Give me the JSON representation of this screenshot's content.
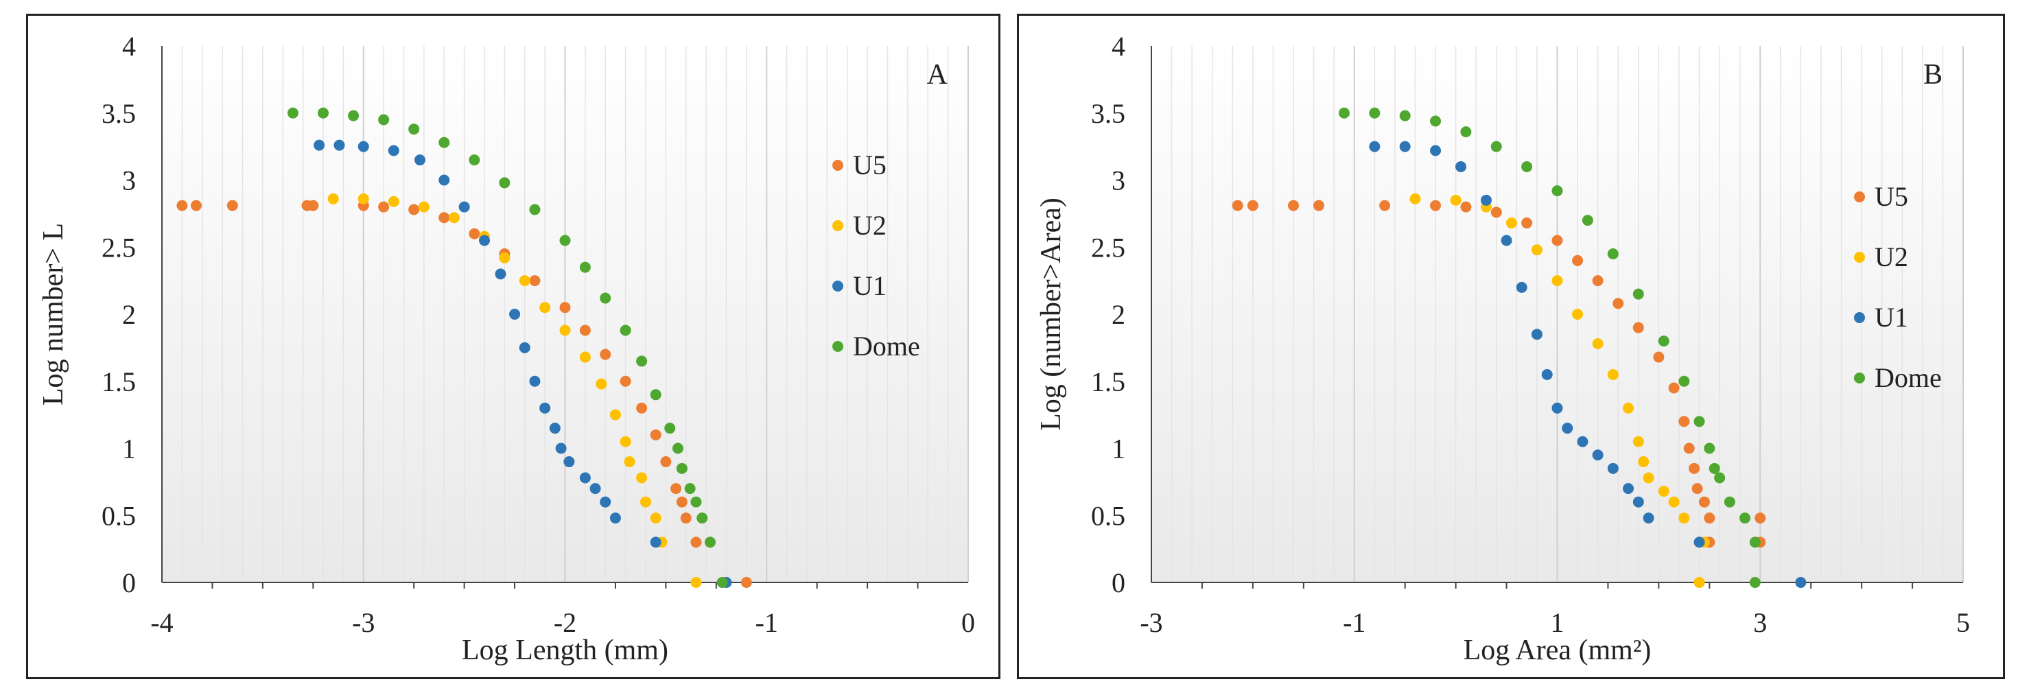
{
  "chart_data": [
    {
      "type": "scatter",
      "panel_letter": "A",
      "xlabel": "Log Length (mm)",
      "ylabel": "Log number> L",
      "xlim": [
        -4,
        0
      ],
      "ylim": [
        0,
        4
      ],
      "x_ticks": [
        -4,
        -3,
        -2,
        -1,
        0
      ],
      "y_ticks": [
        0,
        0.5,
        1,
        1.5,
        2,
        2.5,
        3,
        3.5,
        4
      ],
      "x_tick_labels": [
        "-4",
        "-3",
        "-2",
        "-1",
        "0"
      ],
      "y_tick_labels": [
        "0",
        "0.5",
        "1",
        "1.5",
        "2",
        "2.5",
        "3",
        "3.5",
        "4"
      ],
      "legend": [
        "U5",
        "U2",
        "U1",
        "Dome"
      ],
      "series": [
        {
          "name": "U5",
          "color": "#ED7D31",
          "points": [
            [
              -3.9,
              2.81
            ],
            [
              -3.83,
              2.81
            ],
            [
              -3.65,
              2.81
            ],
            [
              -3.28,
              2.81
            ],
            [
              -3.25,
              2.81
            ],
            [
              -3.0,
              2.81
            ],
            [
              -2.9,
              2.8
            ],
            [
              -2.75,
              2.78
            ],
            [
              -2.6,
              2.72
            ],
            [
              -2.45,
              2.6
            ],
            [
              -2.3,
              2.45
            ],
            [
              -2.15,
              2.25
            ],
            [
              -2.0,
              2.05
            ],
            [
              -1.9,
              1.88
            ],
            [
              -1.8,
              1.7
            ],
            [
              -1.7,
              1.5
            ],
            [
              -1.62,
              1.3
            ],
            [
              -1.55,
              1.1
            ],
            [
              -1.5,
              0.9
            ],
            [
              -1.45,
              0.7
            ],
            [
              -1.42,
              0.6
            ],
            [
              -1.4,
              0.48
            ],
            [
              -1.35,
              0.3
            ],
            [
              -1.1,
              0.0
            ]
          ]
        },
        {
          "name": "U2",
          "color": "#FFC000",
          "points": [
            [
              -3.15,
              2.86
            ],
            [
              -3.0,
              2.86
            ],
            [
              -2.85,
              2.84
            ],
            [
              -2.7,
              2.8
            ],
            [
              -2.55,
              2.72
            ],
            [
              -2.4,
              2.58
            ],
            [
              -2.3,
              2.42
            ],
            [
              -2.2,
              2.25
            ],
            [
              -2.1,
              2.05
            ],
            [
              -2.0,
              1.88
            ],
            [
              -1.9,
              1.68
            ],
            [
              -1.82,
              1.48
            ],
            [
              -1.75,
              1.25
            ],
            [
              -1.7,
              1.05
            ],
            [
              -1.68,
              0.9
            ],
            [
              -1.62,
              0.78
            ],
            [
              -1.6,
              0.6
            ],
            [
              -1.55,
              0.48
            ],
            [
              -1.52,
              0.3
            ],
            [
              -1.35,
              0.0
            ]
          ]
        },
        {
          "name": "U1",
          "color": "#2E75B6",
          "points": [
            [
              -3.22,
              3.26
            ],
            [
              -3.12,
              3.26
            ],
            [
              -3.0,
              3.25
            ],
            [
              -2.85,
              3.22
            ],
            [
              -2.72,
              3.15
            ],
            [
              -2.6,
              3.0
            ],
            [
              -2.5,
              2.8
            ],
            [
              -2.4,
              2.55
            ],
            [
              -2.32,
              2.3
            ],
            [
              -2.25,
              2.0
            ],
            [
              -2.2,
              1.75
            ],
            [
              -2.15,
              1.5
            ],
            [
              -2.1,
              1.3
            ],
            [
              -2.05,
              1.15
            ],
            [
              -2.02,
              1.0
            ],
            [
              -1.98,
              0.9
            ],
            [
              -1.9,
              0.78
            ],
            [
              -1.85,
              0.7
            ],
            [
              -1.8,
              0.6
            ],
            [
              -1.75,
              0.48
            ],
            [
              -1.55,
              0.3
            ],
            [
              -1.2,
              0.0
            ]
          ]
        },
        {
          "name": "Dome",
          "color": "#4EA72E",
          "points": [
            [
              -3.35,
              3.5
            ],
            [
              -3.2,
              3.5
            ],
            [
              -3.05,
              3.48
            ],
            [
              -2.9,
              3.45
            ],
            [
              -2.75,
              3.38
            ],
            [
              -2.6,
              3.28
            ],
            [
              -2.45,
              3.15
            ],
            [
              -2.3,
              2.98
            ],
            [
              -2.15,
              2.78
            ],
            [
              -2.0,
              2.55
            ],
            [
              -1.9,
              2.35
            ],
            [
              -1.8,
              2.12
            ],
            [
              -1.7,
              1.88
            ],
            [
              -1.62,
              1.65
            ],
            [
              -1.55,
              1.4
            ],
            [
              -1.48,
              1.15
            ],
            [
              -1.44,
              1.0
            ],
            [
              -1.42,
              0.85
            ],
            [
              -1.38,
              0.7
            ],
            [
              -1.35,
              0.6
            ],
            [
              -1.32,
              0.48
            ],
            [
              -1.28,
              0.3
            ],
            [
              -1.22,
              0.0
            ]
          ]
        }
      ]
    },
    {
      "type": "scatter",
      "panel_letter": "B",
      "xlabel": "Log Area (mm²)",
      "ylabel": "Log (number>Area)",
      "xlim": [
        -3,
        5
      ],
      "ylim": [
        0,
        4
      ],
      "x_ticks": [
        -3,
        -1,
        1,
        3,
        5
      ],
      "y_ticks": [
        0,
        0.5,
        1,
        1.5,
        2,
        2.5,
        3,
        3.5,
        4
      ],
      "x_tick_labels": [
        "-3",
        "-1",
        "1",
        "3",
        "5"
      ],
      "y_tick_labels": [
        "0",
        "0.5",
        "1",
        "1.5",
        "2",
        "2.5",
        "3",
        "3.5",
        "4"
      ],
      "legend": [
        "U5",
        "U2",
        "U1",
        "Dome"
      ],
      "series": [
        {
          "name": "U5",
          "color": "#ED7D31",
          "points": [
            [
              -2.15,
              2.81
            ],
            [
              -2.0,
              2.81
            ],
            [
              -1.6,
              2.81
            ],
            [
              -1.35,
              2.81
            ],
            [
              -0.7,
              2.81
            ],
            [
              -0.2,
              2.81
            ],
            [
              0.1,
              2.8
            ],
            [
              0.4,
              2.76
            ],
            [
              0.7,
              2.68
            ],
            [
              1.0,
              2.55
            ],
            [
              1.2,
              2.4
            ],
            [
              1.4,
              2.25
            ],
            [
              1.6,
              2.08
            ],
            [
              1.8,
              1.9
            ],
            [
              2.0,
              1.68
            ],
            [
              2.15,
              1.45
            ],
            [
              2.25,
              1.2
            ],
            [
              2.3,
              1.0
            ],
            [
              2.35,
              0.85
            ],
            [
              2.38,
              0.7
            ],
            [
              2.45,
              0.6
            ],
            [
              2.5,
              0.48
            ],
            [
              3.0,
              0.48
            ],
            [
              3.0,
              0.3
            ],
            [
              2.5,
              0.3
            ]
          ]
        },
        {
          "name": "U2",
          "color": "#FFC000",
          "points": [
            [
              -0.4,
              2.86
            ],
            [
              0.0,
              2.85
            ],
            [
              0.3,
              2.8
            ],
            [
              0.55,
              2.68
            ],
            [
              0.8,
              2.48
            ],
            [
              1.0,
              2.25
            ],
            [
              1.2,
              2.0
            ],
            [
              1.4,
              1.78
            ],
            [
              1.55,
              1.55
            ],
            [
              1.7,
              1.3
            ],
            [
              1.8,
              1.05
            ],
            [
              1.85,
              0.9
            ],
            [
              1.9,
              0.78
            ],
            [
              2.05,
              0.68
            ],
            [
              2.15,
              0.6
            ],
            [
              2.25,
              0.48
            ],
            [
              2.45,
              0.3
            ],
            [
              2.4,
              0.0
            ]
          ]
        },
        {
          "name": "U1",
          "color": "#2E75B6",
          "points": [
            [
              -0.8,
              3.25
            ],
            [
              -0.5,
              3.25
            ],
            [
              -0.2,
              3.22
            ],
            [
              0.05,
              3.1
            ],
            [
              0.3,
              2.85
            ],
            [
              0.5,
              2.55
            ],
            [
              0.65,
              2.2
            ],
            [
              0.8,
              1.85
            ],
            [
              0.9,
              1.55
            ],
            [
              1.0,
              1.3
            ],
            [
              1.1,
              1.15
            ],
            [
              1.25,
              1.05
            ],
            [
              1.4,
              0.95
            ],
            [
              1.55,
              0.85
            ],
            [
              1.7,
              0.7
            ],
            [
              1.8,
              0.6
            ],
            [
              1.9,
              0.48
            ],
            [
              2.4,
              0.3
            ],
            [
              3.4,
              0.0
            ]
          ]
        },
        {
          "name": "Dome",
          "color": "#4EA72E",
          "points": [
            [
              -1.1,
              3.5
            ],
            [
              -0.8,
              3.5
            ],
            [
              -0.5,
              3.48
            ],
            [
              -0.2,
              3.44
            ],
            [
              0.1,
              3.36
            ],
            [
              0.4,
              3.25
            ],
            [
              0.7,
              3.1
            ],
            [
              1.0,
              2.92
            ],
            [
              1.3,
              2.7
            ],
            [
              1.55,
              2.45
            ],
            [
              1.8,
              2.15
            ],
            [
              2.05,
              1.8
            ],
            [
              2.25,
              1.5
            ],
            [
              2.4,
              1.2
            ],
            [
              2.5,
              1.0
            ],
            [
              2.55,
              0.85
            ],
            [
              2.6,
              0.78
            ],
            [
              2.7,
              0.6
            ],
            [
              2.85,
              0.48
            ],
            [
              2.95,
              0.3
            ],
            [
              2.95,
              0.0
            ]
          ]
        }
      ]
    }
  ]
}
